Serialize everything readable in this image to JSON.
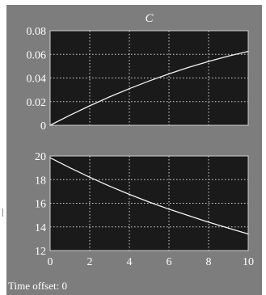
{
  "window": {
    "frame_color": "#7d7d7d",
    "plot_background": "#1a1a1a",
    "grid_color": "#d8d8d8",
    "trace_color": "#f2f2f2"
  },
  "status": {
    "time_offset_text": "Time offset: 0"
  },
  "chart_data": [
    {
      "type": "line",
      "title": "C",
      "xlabel": "",
      "ylabel": "",
      "xlim": [
        0,
        10
      ],
      "ylim": [
        0,
        0.08
      ],
      "grid": true,
      "x_ticks": [
        "0",
        "2",
        "4",
        "6",
        "8",
        "10"
      ],
      "y_ticks": [
        "0.08",
        "0.06",
        "0.04",
        "0.02",
        "0"
      ],
      "x_tick_labels_shown": false,
      "series": [
        {
          "x": [
            0,
            1,
            2,
            3,
            4,
            5,
            6,
            7,
            8,
            9,
            10
          ],
          "y": [
            0.0,
            0.0085,
            0.0165,
            0.024,
            0.031,
            0.0375,
            0.0435,
            0.049,
            0.054,
            0.0585,
            0.0625
          ]
        }
      ]
    },
    {
      "type": "line",
      "title": "",
      "xlabel": "",
      "ylabel": "",
      "xlim": [
        0,
        10
      ],
      "ylim": [
        12,
        20
      ],
      "grid": true,
      "x_ticks": [
        "0",
        "2",
        "4",
        "6",
        "8",
        "10"
      ],
      "y_ticks": [
        "20",
        "18",
        "16",
        "14",
        "12"
      ],
      "x_tick_labels_shown": true,
      "series": [
        {
          "x": [
            0,
            1,
            2,
            3,
            4,
            5,
            6,
            7,
            8,
            9,
            10
          ],
          "y": [
            19.85,
            19.0,
            18.2,
            17.45,
            16.75,
            16.1,
            15.5,
            14.95,
            14.4,
            13.9,
            13.4
          ]
        }
      ]
    }
  ]
}
